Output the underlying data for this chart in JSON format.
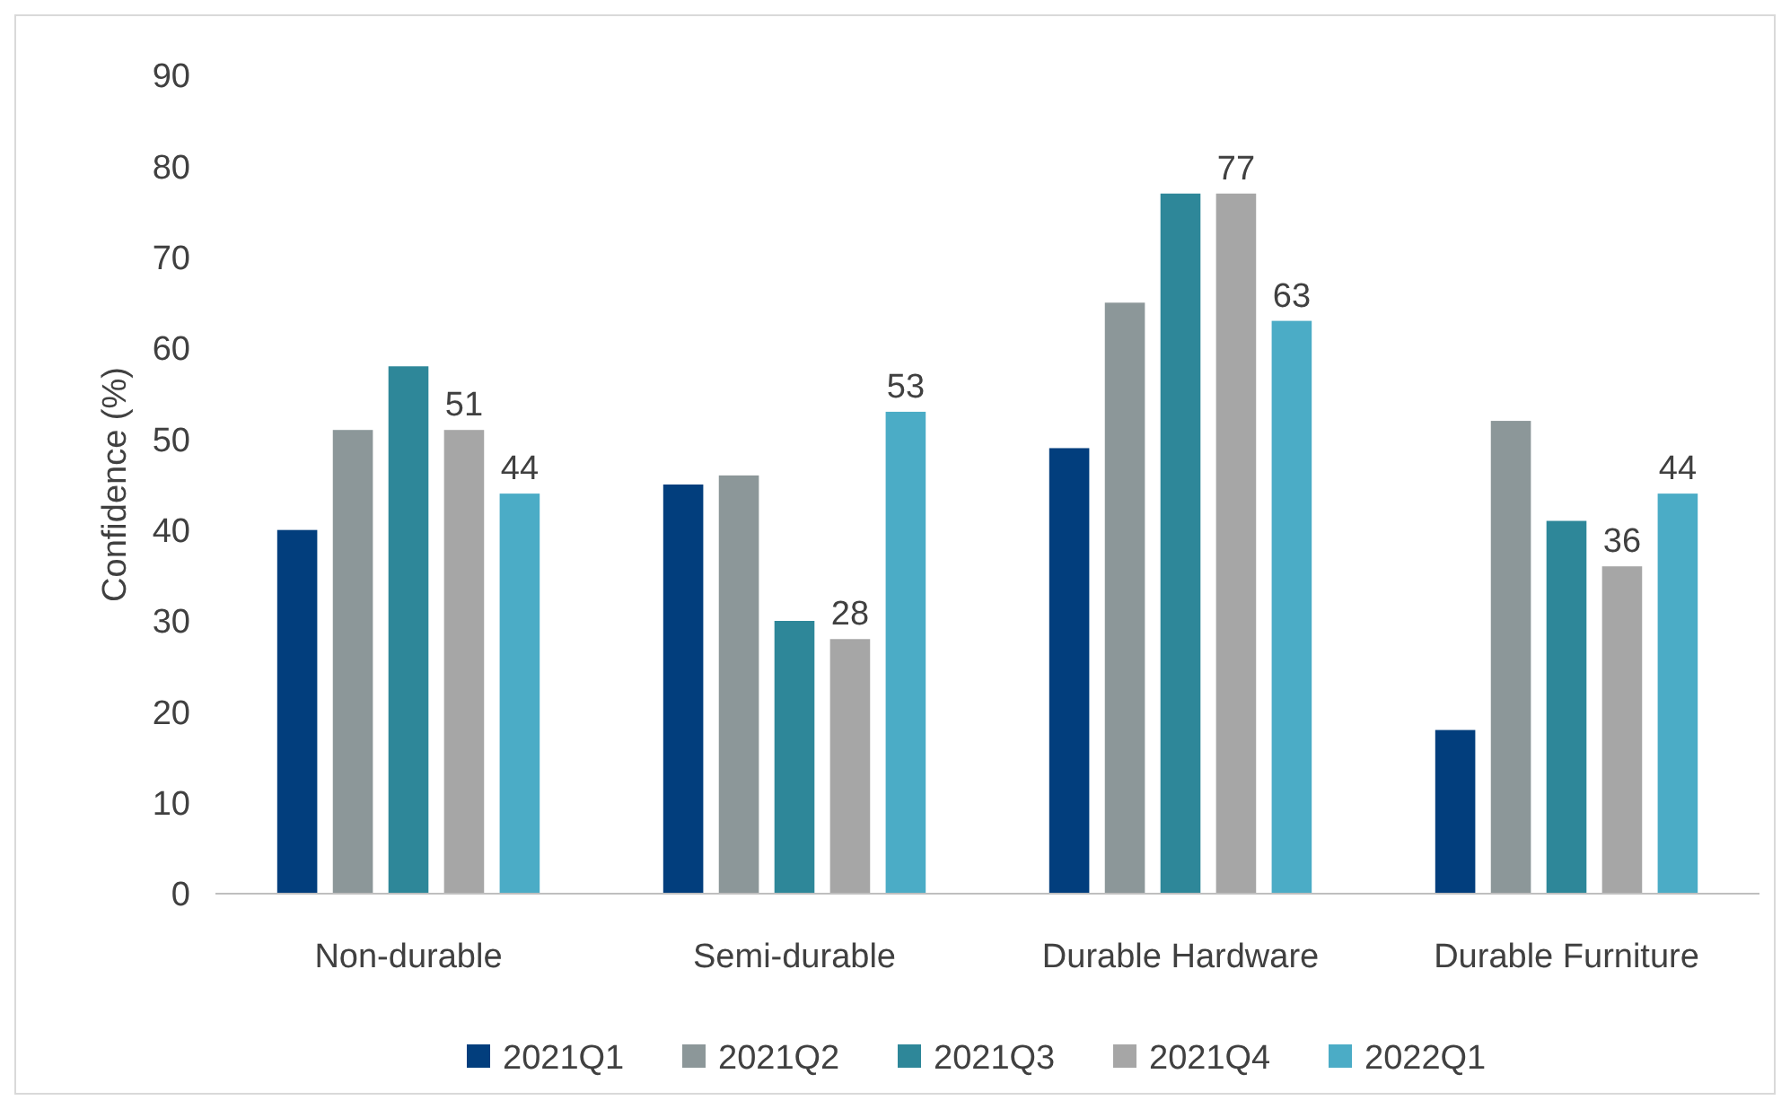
{
  "chart_data": {
    "type": "bar",
    "ylabel": "Confidence (%)",
    "categories": [
      "Non-durable",
      "Semi-durable",
      "Durable Hardware",
      "Durable Furniture"
    ],
    "series": [
      {
        "name": "2021Q1",
        "color": "#023e7d",
        "values": [
          40,
          45,
          49,
          18
        ]
      },
      {
        "name": "2021Q2",
        "color": "#8c9799",
        "values": [
          51,
          46,
          65,
          52
        ]
      },
      {
        "name": "2021Q3",
        "color": "#2e8799",
        "values": [
          58,
          30,
          77,
          41
        ]
      },
      {
        "name": "2021Q4",
        "color": "#a6a6a6",
        "values": [
          51,
          28,
          77,
          36
        ],
        "value_labels": [
          "51",
          "28",
          "77",
          "36"
        ]
      },
      {
        "name": "2022Q1",
        "color": "#4bacc6",
        "values": [
          44,
          53,
          63,
          44
        ],
        "value_labels": [
          "44",
          "53",
          "63",
          "44"
        ]
      }
    ],
    "ylim": [
      0,
      90
    ],
    "yticks": [
      0,
      10,
      20,
      30,
      40,
      50,
      60,
      70,
      80,
      90
    ],
    "grid": false,
    "legend": "bottom"
  }
}
